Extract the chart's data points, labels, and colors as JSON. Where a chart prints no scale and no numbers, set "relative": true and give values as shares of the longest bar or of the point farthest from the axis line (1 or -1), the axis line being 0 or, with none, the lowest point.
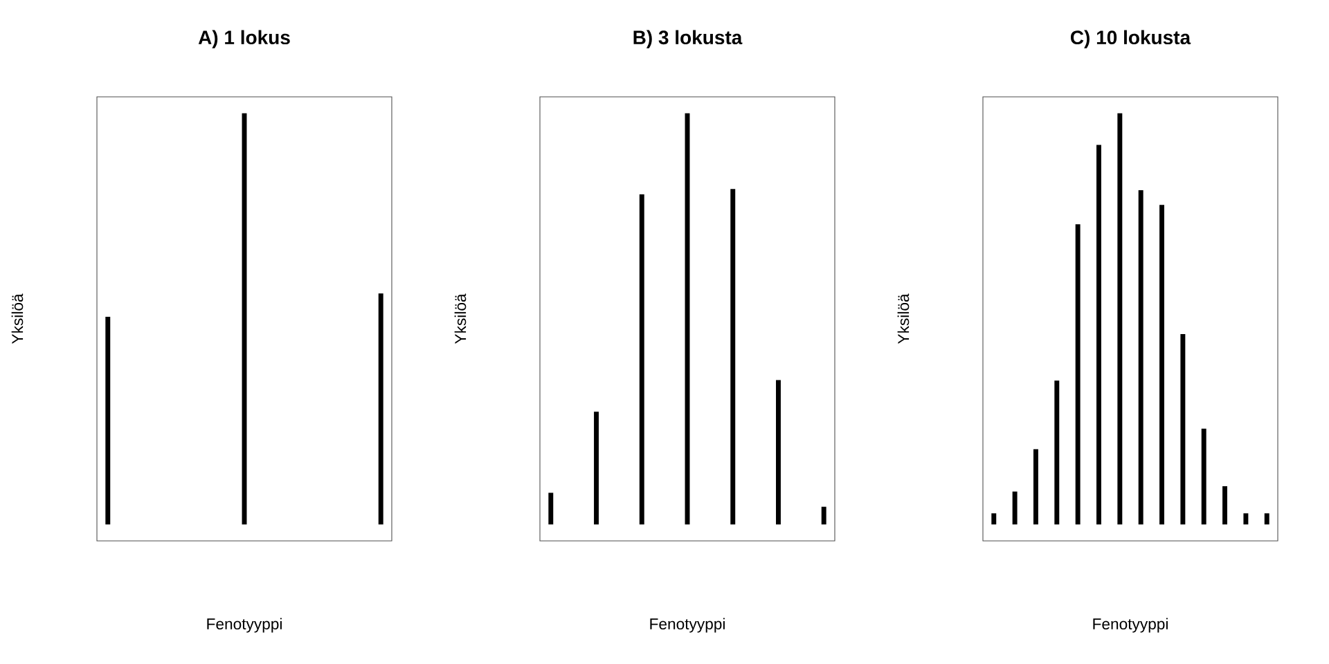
{
  "chart_data": [
    {
      "type": "bar",
      "title": "A) 1 lokus",
      "xlabel": "Fenotyyppi",
      "ylabel": "Yksilöä",
      "relative": true,
      "color": "#000000",
      "categories": [
        null,
        null,
        null
      ],
      "values": [
        0.505,
        1,
        0.562
      ]
    },
    {
      "type": "bar",
      "title": "B) 3 lokusta",
      "xlabel": "Fenotyyppi",
      "ylabel": "Yksilöä",
      "relative": true,
      "color": "#000000",
      "categories": [
        null,
        null,
        null,
        null,
        null,
        null,
        null
      ],
      "values": [
        0.077,
        0.274,
        0.803,
        1,
        0.816,
        0.351,
        0.043
      ]
    },
    {
      "type": "bar",
      "title": "C) 10 lokusta",
      "xlabel": "Fenotyyppi",
      "ylabel": "Yksilöä",
      "relative": true,
      "color": "#000000",
      "categories": [
        null,
        null,
        null,
        null,
        null,
        null,
        null,
        null,
        null,
        null,
        null,
        null,
        null,
        null
      ],
      "values": [
        0.027,
        0.08,
        0.183,
        0.35,
        0.73,
        0.923,
        1,
        0.813,
        0.777,
        0.463,
        0.233,
        0.093,
        0.027,
        0.027
      ]
    }
  ]
}
